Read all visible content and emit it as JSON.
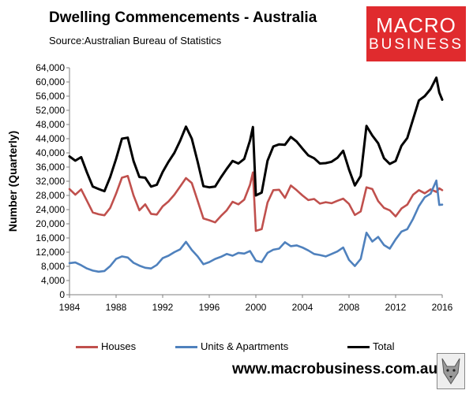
{
  "header": {
    "title": "Dwelling Commencements - Australia",
    "source": "Source:Australian Bureau of Statistics"
  },
  "logo": {
    "line1": "MACRO",
    "line2": "BUSINESS",
    "color": "#e02b2e"
  },
  "footer": {
    "website": "www.macrobusiness.com.au",
    "mascot_icon": "wolf-icon"
  },
  "chart_data": {
    "type": "line",
    "ylabel": "Number (Quarterly)",
    "xlabel": "",
    "ylim": [
      0,
      64000
    ],
    "xlim": [
      1984,
      2016
    ],
    "yticks": [
      0,
      4000,
      8000,
      12000,
      16000,
      20000,
      24000,
      28000,
      32000,
      36000,
      40000,
      44000,
      48000,
      52000,
      56000,
      60000,
      64000
    ],
    "ytick_labels": [
      "0",
      "4,000",
      "8,000",
      "12,000",
      "16,000",
      "20,000",
      "24,000",
      "28,000",
      "32,000",
      "36,000",
      "40,000",
      "44,000",
      "48,000",
      "52,000",
      "56,000",
      "60,000",
      "64,000"
    ],
    "xticks": [
      1984,
      1988,
      1992,
      1996,
      2000,
      2004,
      2008,
      2012,
      2016
    ],
    "xtick_labels": [
      "1984",
      "1988",
      "1992",
      "1996",
      "2000",
      "2004",
      "2008",
      "2012",
      "2016"
    ],
    "grid": false,
    "legend_position": "bottom",
    "series": [
      {
        "name": "Houses",
        "color": "#c0504d",
        "points": [
          [
            1984,
            29800
          ],
          [
            1984.5,
            28200
          ],
          [
            1985,
            29700
          ],
          [
            1985.5,
            26500
          ],
          [
            1986,
            23200
          ],
          [
            1986.5,
            22700
          ],
          [
            1987,
            22400
          ],
          [
            1987.5,
            24500
          ],
          [
            1988,
            28500
          ],
          [
            1988.5,
            33000
          ],
          [
            1989,
            33500
          ],
          [
            1989.5,
            28000
          ],
          [
            1990,
            23800
          ],
          [
            1990.5,
            25500
          ],
          [
            1991,
            22800
          ],
          [
            1991.5,
            22600
          ],
          [
            1992,
            24900
          ],
          [
            1992.5,
            26300
          ],
          [
            1993,
            28200
          ],
          [
            1993.5,
            30500
          ],
          [
            1994,
            32900
          ],
          [
            1994.5,
            31500
          ],
          [
            1995,
            26500
          ],
          [
            1995.5,
            21500
          ],
          [
            1996,
            21000
          ],
          [
            1996.5,
            20400
          ],
          [
            1997,
            22200
          ],
          [
            1997.5,
            23800
          ],
          [
            1998,
            26200
          ],
          [
            1998.5,
            25500
          ],
          [
            1999,
            26800
          ],
          [
            1999.5,
            31000
          ],
          [
            1999.75,
            34500
          ],
          [
            2000,
            18000
          ],
          [
            2000.5,
            18500
          ],
          [
            2001,
            26000
          ],
          [
            2001.5,
            29500
          ],
          [
            2002,
            29600
          ],
          [
            2002.5,
            27300
          ],
          [
            2003,
            30800
          ],
          [
            2003.5,
            29500
          ],
          [
            2004,
            28000
          ],
          [
            2004.5,
            26700
          ],
          [
            2005,
            27000
          ],
          [
            2005.5,
            25700
          ],
          [
            2006,
            26100
          ],
          [
            2006.5,
            25800
          ],
          [
            2007,
            26500
          ],
          [
            2007.5,
            27100
          ],
          [
            2008,
            25600
          ],
          [
            2008.5,
            22500
          ],
          [
            2009,
            23500
          ],
          [
            2009.5,
            30300
          ],
          [
            2010,
            29800
          ],
          [
            2010.5,
            26400
          ],
          [
            2011,
            24500
          ],
          [
            2011.5,
            23800
          ],
          [
            2012,
            22100
          ],
          [
            2012.5,
            24300
          ],
          [
            2013,
            25400
          ],
          [
            2013.5,
            28200
          ],
          [
            2014,
            29500
          ],
          [
            2014.5,
            28600
          ],
          [
            2015,
            29700
          ],
          [
            2015.5,
            29000
          ],
          [
            2015.75,
            30000
          ],
          [
            2016,
            29500
          ]
        ]
      },
      {
        "name": "Units & Apartments",
        "color": "#4f81bd",
        "points": [
          [
            1984,
            8900
          ],
          [
            1984.5,
            9100
          ],
          [
            1985,
            8300
          ],
          [
            1985.5,
            7400
          ],
          [
            1986,
            6800
          ],
          [
            1986.5,
            6500
          ],
          [
            1987,
            6700
          ],
          [
            1987.5,
            8100
          ],
          [
            1988,
            10100
          ],
          [
            1988.5,
            10800
          ],
          [
            1989,
            10500
          ],
          [
            1989.5,
            9000
          ],
          [
            1990,
            8200
          ],
          [
            1990.5,
            7600
          ],
          [
            1991,
            7400
          ],
          [
            1991.5,
            8400
          ],
          [
            1992,
            10300
          ],
          [
            1992.5,
            11000
          ],
          [
            1993,
            12000
          ],
          [
            1993.5,
            12800
          ],
          [
            1994,
            14900
          ],
          [
            1994.5,
            12600
          ],
          [
            1995,
            10800
          ],
          [
            1995.5,
            8600
          ],
          [
            1996,
            9200
          ],
          [
            1996.5,
            10100
          ],
          [
            1997,
            10700
          ],
          [
            1997.5,
            11500
          ],
          [
            1998,
            11000
          ],
          [
            1998.5,
            11800
          ],
          [
            1999,
            11600
          ],
          [
            1999.5,
            12300
          ],
          [
            2000,
            9600
          ],
          [
            2000.5,
            9200
          ],
          [
            2001,
            11800
          ],
          [
            2001.5,
            12700
          ],
          [
            2002,
            13000
          ],
          [
            2002.5,
            14800
          ],
          [
            2003,
            13700
          ],
          [
            2003.5,
            13900
          ],
          [
            2004,
            13300
          ],
          [
            2004.5,
            12500
          ],
          [
            2005,
            11500
          ],
          [
            2005.5,
            11200
          ],
          [
            2006,
            10800
          ],
          [
            2006.5,
            11500
          ],
          [
            2007,
            12200
          ],
          [
            2007.5,
            13300
          ],
          [
            2008,
            9800
          ],
          [
            2008.5,
            8100
          ],
          [
            2009,
            10100
          ],
          [
            2009.5,
            17500
          ],
          [
            2010,
            15000
          ],
          [
            2010.5,
            16300
          ],
          [
            2011,
            14000
          ],
          [
            2011.5,
            13000
          ],
          [
            2012,
            15600
          ],
          [
            2012.5,
            17800
          ],
          [
            2013,
            18500
          ],
          [
            2013.5,
            21400
          ],
          [
            2014,
            25000
          ],
          [
            2014.5,
            27500
          ],
          [
            2015,
            28500
          ],
          [
            2015.5,
            32200
          ],
          [
            2015.75,
            25300
          ],
          [
            2016,
            25400
          ]
        ]
      },
      {
        "name": "Total",
        "color": "#000000",
        "points": [
          [
            1984,
            39000
          ],
          [
            1984.5,
            37800
          ],
          [
            1985,
            38800
          ],
          [
            1985.5,
            34500
          ],
          [
            1986,
            30500
          ],
          [
            1986.5,
            29800
          ],
          [
            1987,
            29200
          ],
          [
            1987.5,
            33200
          ],
          [
            1988,
            38300
          ],
          [
            1988.5,
            44000
          ],
          [
            1989,
            44300
          ],
          [
            1989.5,
            37700
          ],
          [
            1990,
            33200
          ],
          [
            1990.5,
            33000
          ],
          [
            1991,
            30500
          ],
          [
            1991.5,
            31000
          ],
          [
            1992,
            34600
          ],
          [
            1992.5,
            37500
          ],
          [
            1993,
            40000
          ],
          [
            1993.5,
            43400
          ],
          [
            1994,
            47400
          ],
          [
            1994.5,
            44000
          ],
          [
            1995,
            37500
          ],
          [
            1995.5,
            30600
          ],
          [
            1996,
            30300
          ],
          [
            1996.5,
            30500
          ],
          [
            1997,
            33100
          ],
          [
            1997.5,
            35500
          ],
          [
            1998,
            37700
          ],
          [
            1998.5,
            37000
          ],
          [
            1999,
            38300
          ],
          [
            1999.5,
            43500
          ],
          [
            1999.75,
            47300
          ],
          [
            2000,
            28000
          ],
          [
            2000.5,
            28800
          ],
          [
            2001,
            37800
          ],
          [
            2001.5,
            41800
          ],
          [
            2002,
            42400
          ],
          [
            2002.5,
            42300
          ],
          [
            2003,
            44500
          ],
          [
            2003.5,
            43200
          ],
          [
            2004,
            41200
          ],
          [
            2004.5,
            39300
          ],
          [
            2005,
            38500
          ],
          [
            2005.5,
            37000
          ],
          [
            2006,
            37100
          ],
          [
            2006.5,
            37500
          ],
          [
            2007,
            38600
          ],
          [
            2007.5,
            40600
          ],
          [
            2008,
            35300
          ],
          [
            2008.5,
            30800
          ],
          [
            2009,
            33500
          ],
          [
            2009.5,
            47600
          ],
          [
            2010,
            44900
          ],
          [
            2010.5,
            42700
          ],
          [
            2011,
            38500
          ],
          [
            2011.5,
            36900
          ],
          [
            2012,
            37700
          ],
          [
            2012.5,
            42000
          ],
          [
            2013,
            44200
          ],
          [
            2013.5,
            49500
          ],
          [
            2014,
            54800
          ],
          [
            2014.5,
            56000
          ],
          [
            2015,
            58000
          ],
          [
            2015.5,
            61200
          ],
          [
            2015.75,
            57000
          ],
          [
            2016,
            55000
          ]
        ]
      }
    ]
  }
}
